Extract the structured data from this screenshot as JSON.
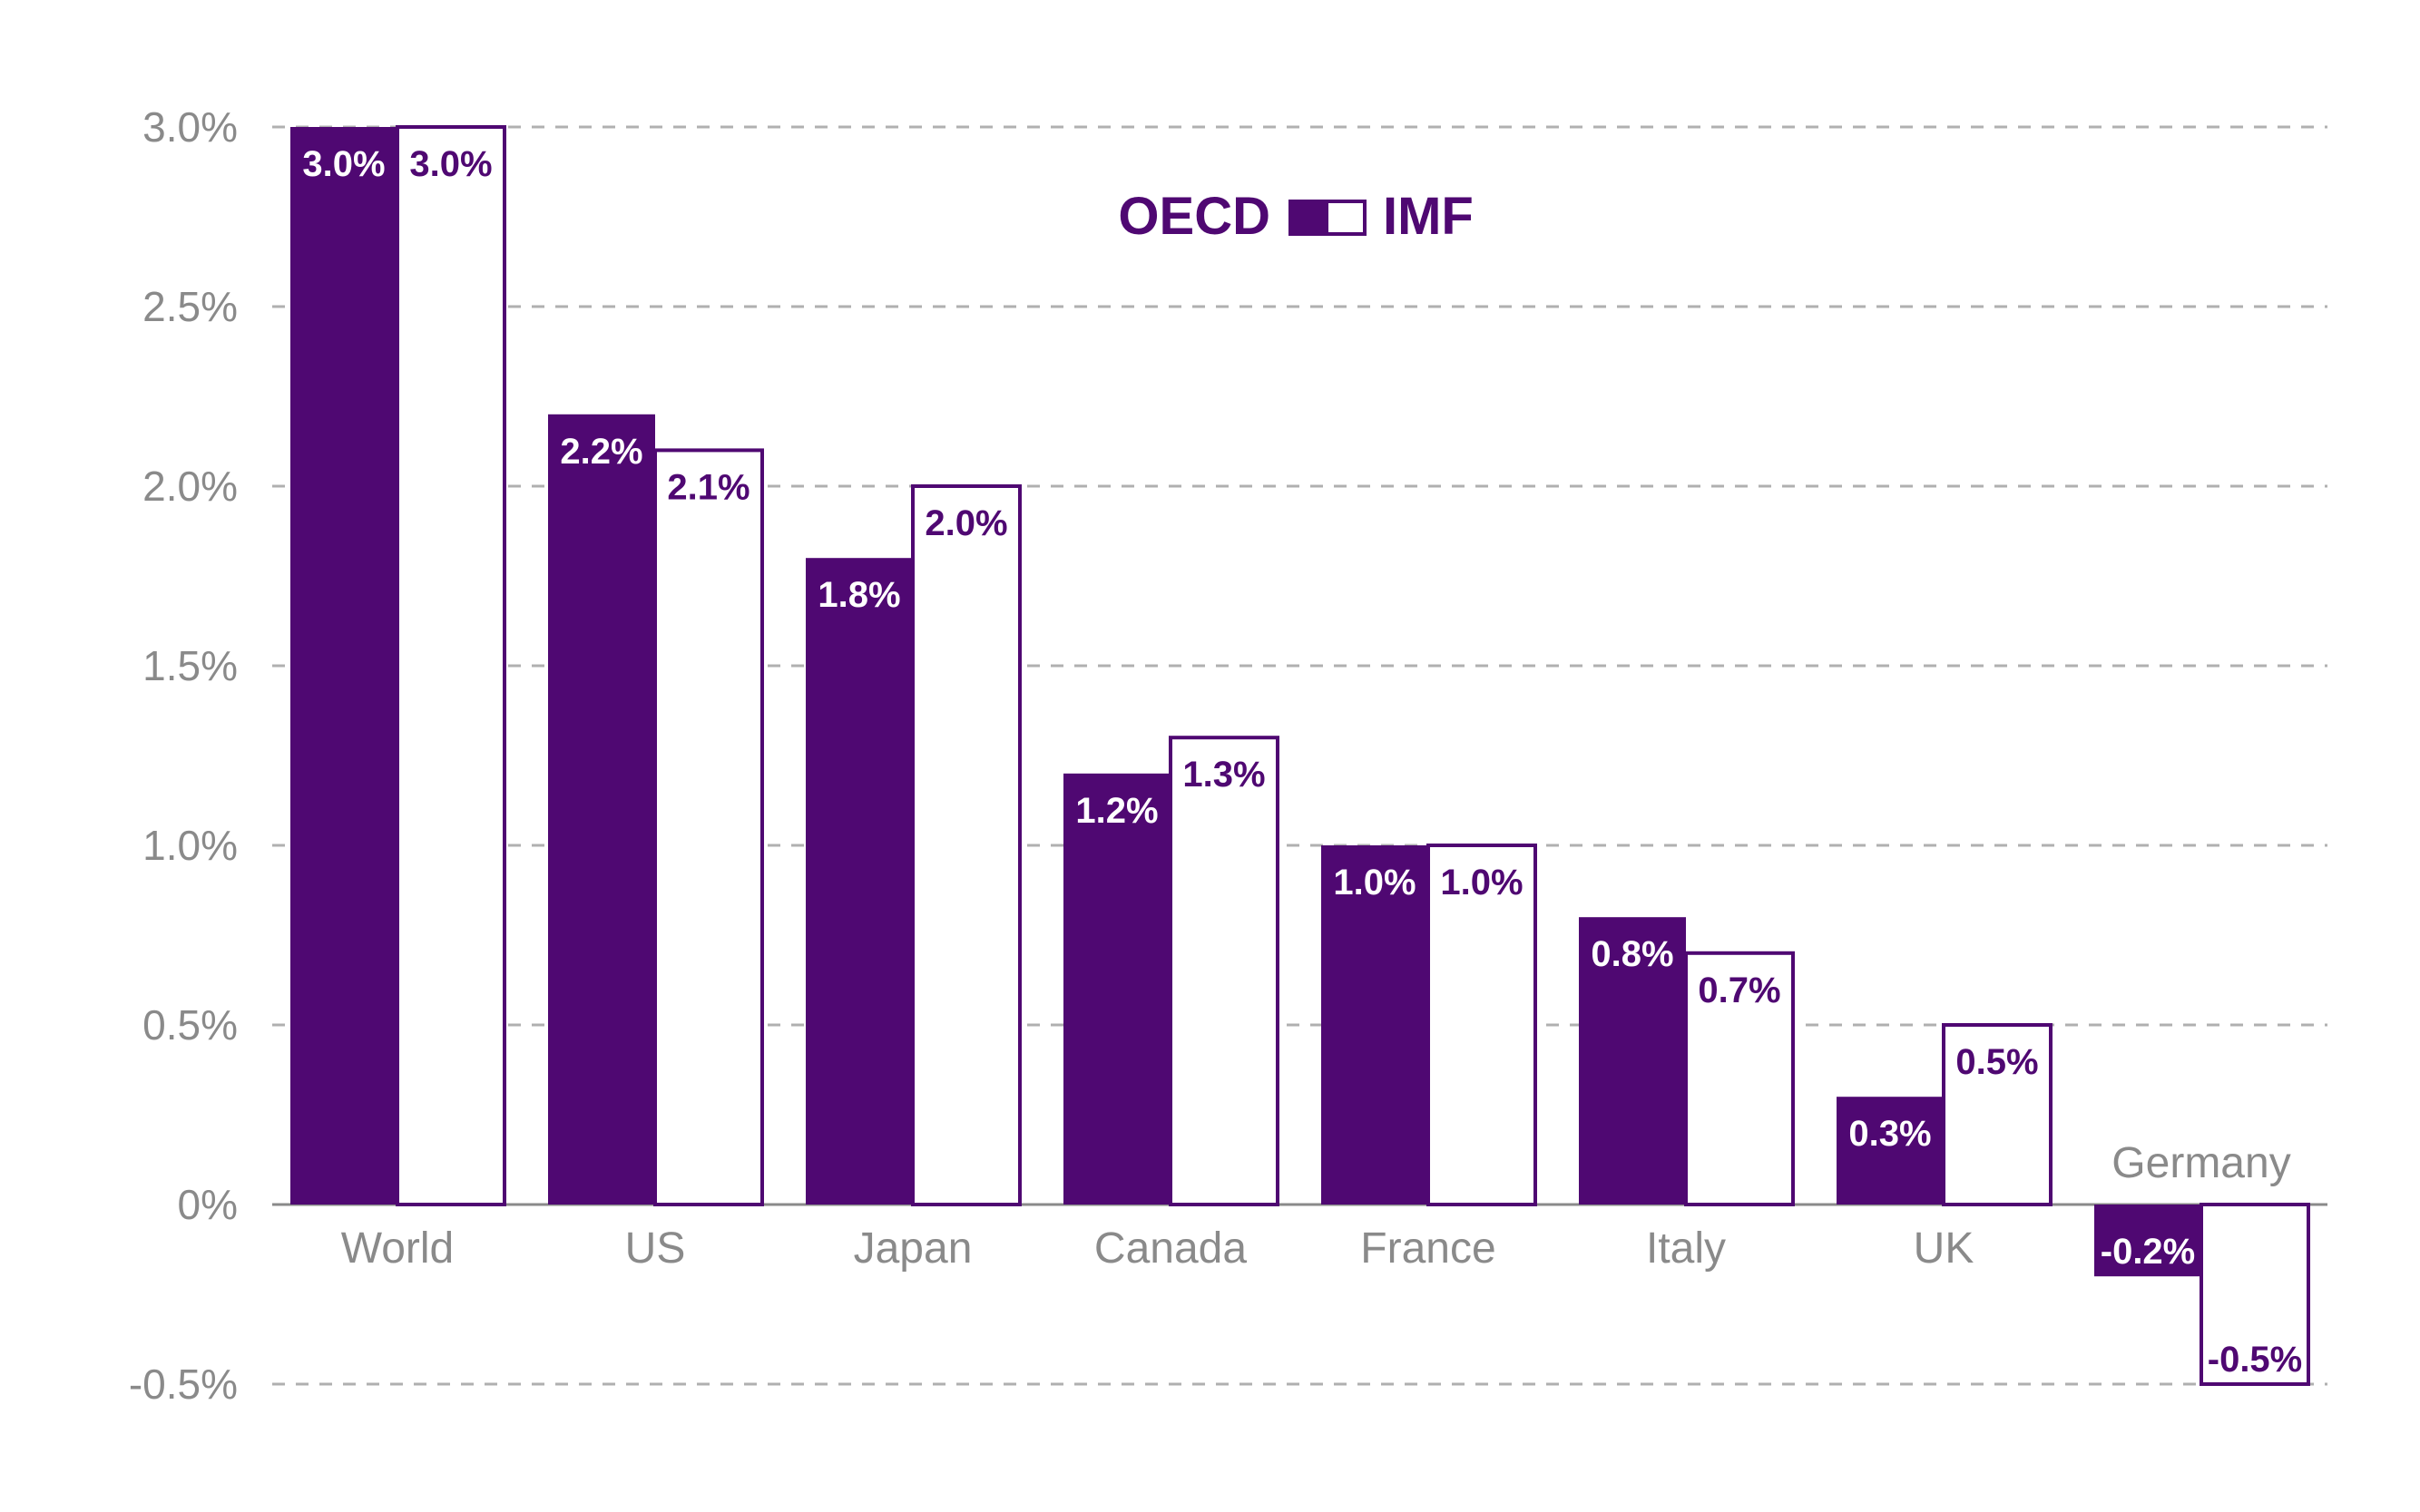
{
  "chart_data": {
    "type": "bar",
    "categories": [
      "World",
      "US",
      "Japan",
      "Canada",
      "France",
      "Italy",
      "UK",
      "Germany"
    ],
    "series": [
      {
        "name": "OECD",
        "values": [
          3.0,
          2.2,
          1.8,
          1.2,
          1.0,
          0.8,
          0.3,
          -0.2
        ]
      },
      {
        "name": "IMF",
        "values": [
          3.0,
          2.1,
          2.0,
          1.3,
          1.0,
          0.7,
          0.5,
          -0.5
        ]
      }
    ],
    "value_labels": {
      "OECD": [
        "3.0%",
        "2.2%",
        "1.8%",
        "1.2%",
        "1.0%",
        "0.8%",
        "0.3%",
        "-0.2%"
      ],
      "IMF": [
        "3.0%",
        "2.1%",
        "2.0%",
        "1.3%",
        "1.0%",
        "0.7%",
        "0.5%",
        "-0.5%"
      ]
    },
    "y_ticks": [
      3.0,
      2.5,
      2.0,
      1.5,
      1.0,
      0.5,
      0,
      -0.5
    ],
    "y_tick_labels": [
      "3.0%",
      "2.5%",
      "2.0%",
      "1.5%",
      "1.0%",
      "0.5%",
      "0%",
      "-0.5%"
    ],
    "ylim": [
      -0.5,
      3.0
    ],
    "grid": true,
    "grid_style": "dashed",
    "legend": {
      "placement": "top-center",
      "left_label": "OECD",
      "right_label": "IMF"
    },
    "colors": {
      "OECD": "#4f0872",
      "IMF": "#ffffff",
      "IMF_outline": "#4f0872",
      "axis": "#8a8a8a",
      "grid": "#b0b0b0"
    },
    "title": "",
    "xlabel": "",
    "ylabel": ""
  }
}
